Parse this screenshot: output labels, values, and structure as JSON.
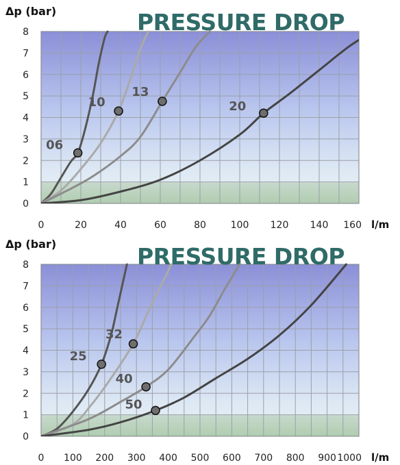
{
  "chart_data": [
    {
      "type": "line",
      "title": "PRESSURE DROP",
      "ylabel": "Δp (bar)",
      "xlabel": "l/m",
      "xlim": [
        0,
        160
      ],
      "ylim": [
        0,
        8
      ],
      "xticks": [
        0,
        20,
        40,
        60,
        80,
        100,
        120,
        140,
        160
      ],
      "yticks": [
        0,
        1,
        2,
        3,
        4,
        5,
        6,
        7,
        8
      ],
      "grid": true,
      "series": [
        {
          "name": "06",
          "color": "#555555",
          "x": [
            0,
            5,
            10,
            15,
            18.5,
            22,
            26,
            29,
            32,
            33.5
          ],
          "y": [
            0,
            0.45,
            1.2,
            1.95,
            2.35,
            3.4,
            5.0,
            6.5,
            7.7,
            8
          ],
          "marker": [
            18.5,
            2.35
          ]
        },
        {
          "name": "10",
          "color": "#aaaaaa",
          "x": [
            0,
            10,
            20,
            30,
            39,
            45,
            50,
            54
          ],
          "y": [
            0,
            0.6,
            1.6,
            2.8,
            4.3,
            5.8,
            7.2,
            8
          ],
          "marker": [
            39,
            4.3
          ]
        },
        {
          "name": "13",
          "color": "#8c8c8c",
          "x": [
            0,
            10,
            25,
            40,
            50,
            61,
            70,
            78,
            85
          ],
          "y": [
            0,
            0.45,
            1.2,
            2.2,
            3.1,
            4.75,
            6.1,
            7.3,
            8
          ],
          "marker": [
            61,
            4.75
          ]
        },
        {
          "name": "20",
          "color": "#444444",
          "x": [
            0,
            20,
            40,
            60,
            80,
            100,
            112,
            125,
            140,
            155,
            167
          ],
          "y": [
            0,
            0.15,
            0.55,
            1.1,
            2.0,
            3.2,
            4.2,
            5.1,
            6.2,
            7.3,
            8
          ],
          "marker": [
            112,
            4.2
          ]
        }
      ]
    },
    {
      "type": "line",
      "title": "PRESSURE DROP",
      "ylabel": "Δp (bar)",
      "xlabel": "l/m",
      "xlim": [
        0,
        1000
      ],
      "ylim": [
        0,
        8
      ],
      "xticks": [
        0,
        100,
        200,
        300,
        400,
        500,
        600,
        700,
        800,
        900,
        1000
      ],
      "yticks": [
        0,
        1,
        2,
        3,
        4,
        5,
        6,
        7,
        8
      ],
      "grid": true,
      "series": [
        {
          "name": "25",
          "color": "#555555",
          "x": [
            0,
            50,
            100,
            150,
            190,
            220,
            240,
            255,
            270
          ],
          "y": [
            0,
            0.35,
            1.15,
            2.2,
            3.35,
            4.7,
            6.0,
            7.0,
            8
          ],
          "marker": [
            190,
            3.35
          ]
        },
        {
          "name": "32",
          "color": "#aaaaaa",
          "x": [
            0,
            100,
            160,
            220,
            290,
            340,
            380,
            410
          ],
          "y": [
            0,
            0.55,
            1.5,
            2.7,
            4.3,
            5.9,
            7.1,
            8
          ],
          "marker": [
            290,
            4.3
          ]
        },
        {
          "name": "40",
          "color": "#8c8c8c",
          "x": [
            0,
            150,
            250,
            330,
            400,
            480,
            530,
            580,
            625
          ],
          "y": [
            0,
            0.8,
            1.6,
            2.3,
            3.1,
            4.6,
            5.6,
            6.9,
            8
          ],
          "marker": [
            330,
            2.3
          ]
        },
        {
          "name": "50",
          "color": "#444444",
          "x": [
            0,
            150,
            250,
            360,
            450,
            550,
            650,
            750,
            850,
            960
          ],
          "y": [
            0,
            0.3,
            0.65,
            1.2,
            1.8,
            2.7,
            3.6,
            4.7,
            6.1,
            8
          ],
          "marker": [
            360,
            1.2
          ]
        }
      ]
    }
  ]
}
